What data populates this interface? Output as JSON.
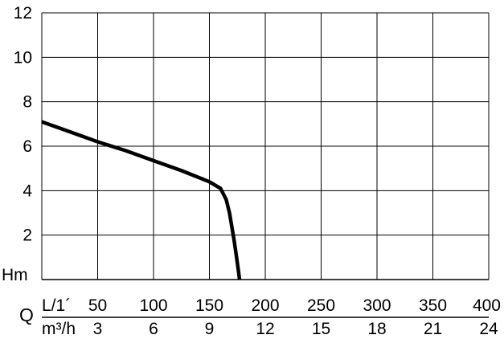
{
  "chart_data": {
    "type": "line",
    "title": "",
    "ylabel": "Hm",
    "xlabel": "Q",
    "x_unit_top": "L/1´",
    "x_unit_bottom": "m³/h",
    "ylim": [
      0,
      12
    ],
    "xlim": [
      0,
      400
    ],
    "grid": true,
    "y_ticks": [
      "2",
      "4",
      "6",
      "8",
      "10",
      "12"
    ],
    "x_ticks_lmin": [
      "50",
      "100",
      "150",
      "200",
      "250",
      "300",
      "350",
      "400"
    ],
    "x_ticks_m3h": [
      "3",
      "6",
      "9",
      "12",
      "15",
      "18",
      "21",
      "24"
    ],
    "series": [
      {
        "x": [
          0,
          25,
          50,
          75,
          100,
          125,
          150,
          160,
          165,
          168,
          170,
          172,
          174,
          176,
          177
        ],
        "y": [
          7.1,
          6.65,
          6.2,
          5.8,
          5.35,
          4.9,
          4.4,
          4.1,
          3.6,
          3.0,
          2.4,
          1.8,
          1.1,
          0.4,
          0.0
        ]
      }
    ],
    "line_color": "#000000",
    "grid_color": "#000000"
  }
}
